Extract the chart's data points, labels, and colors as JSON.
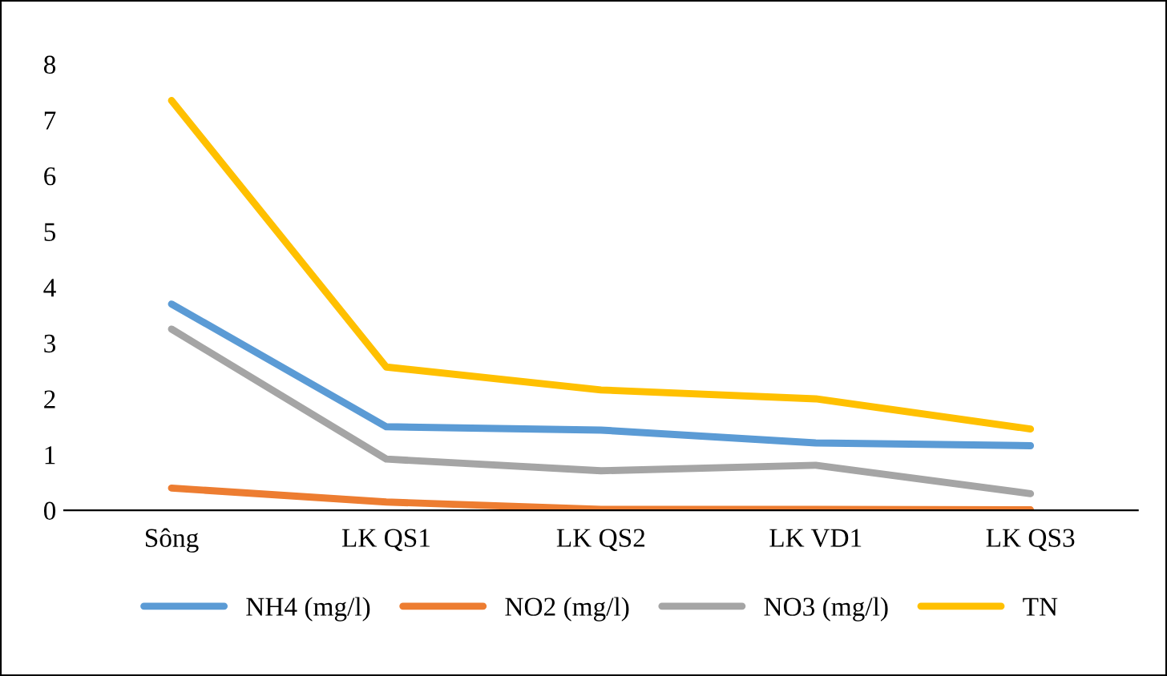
{
  "chart_data": {
    "type": "line",
    "categories": [
      "Sông",
      "LK QS1",
      "LK QS2",
      "LK VD1",
      "LK QS3"
    ],
    "series": [
      {
        "name": "NH4 (mg/l)",
        "color": "#5b9bd5",
        "values": [
          3.7,
          1.5,
          1.44,
          1.21,
          1.16
        ]
      },
      {
        "name": "NO2 (mg/l)",
        "color": "#ed7d31",
        "values": [
          0.4,
          0.15,
          0.02,
          0.02,
          0.01
        ]
      },
      {
        "name": "NO3 (mg/l)",
        "color": "#a5a5a5",
        "values": [
          3.25,
          0.92,
          0.71,
          0.81,
          0.3
        ]
      },
      {
        "name": "TN",
        "color": "#ffc000",
        "values": [
          7.35,
          2.57,
          2.16,
          2.0,
          1.46
        ]
      }
    ],
    "ylim": [
      0,
      8
    ],
    "yticks": [
      0,
      1,
      2,
      3,
      4,
      5,
      6,
      7,
      8
    ],
    "grid": false,
    "legend": "bottom",
    "marker": "none",
    "line_style": "solid"
  }
}
